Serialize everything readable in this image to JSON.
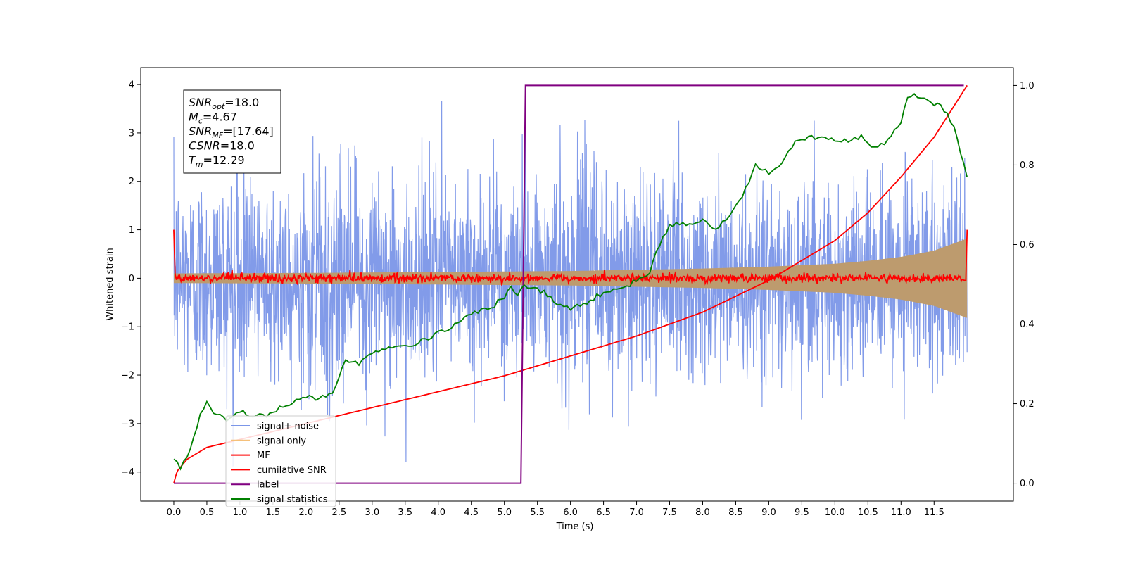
{
  "chart_data": {
    "type": "line",
    "xlabel": "Time (s)",
    "ylabel": "Whitened strain",
    "xlim": [
      -0.5,
      12.7
    ],
    "ylim": [
      -4.6,
      4.35
    ],
    "y2lim": [
      -0.045,
      1.045
    ],
    "xticks": [
      0.0,
      0.5,
      1.0,
      1.5,
      2.0,
      2.5,
      3.0,
      3.5,
      4.0,
      4.5,
      5.0,
      5.5,
      6.0,
      6.5,
      7.0,
      7.5,
      8.0,
      8.5,
      9.0,
      9.5,
      10.0,
      10.5,
      11.0,
      11.5
    ],
    "xtick_labels": [
      "0.0",
      "0.5",
      "1.0",
      "1.5",
      "2.0",
      "2.5",
      "3.0",
      "3.5",
      "4.0",
      "4.5",
      "5.0",
      "5.5",
      "6.0",
      "6.5",
      "7.0",
      "7.5",
      "8.0",
      "8.5",
      "9.0",
      "9.5",
      "10.0",
      "10.5",
      "11.0",
      "11.5"
    ],
    "yticks": [
      4,
      3,
      2,
      1,
      0,
      -1,
      -2,
      -3,
      -4
    ],
    "ytick_labels": [
      "4",
      "3",
      "2",
      "1",
      "0",
      "−1",
      "−2",
      "−3",
      "−4"
    ],
    "y2ticks": [
      1.0,
      0.8,
      0.6,
      0.4,
      0.2,
      0.0
    ],
    "y2tick_labels": [
      "1.0",
      "0.8",
      "0.6",
      "0.4",
      "0.2",
      "0.0"
    ],
    "grid": false,
    "legend_position": "lower-left",
    "annotations": [
      {
        "main": "SNR",
        "sub": "opt",
        "value": "=18.0"
      },
      {
        "main": "M",
        "sub": "c",
        "value": "=4.67"
      },
      {
        "main": "SNR",
        "sub": "MF",
        "value": "=[17.64]"
      },
      {
        "main": "CSNR",
        "sub": "",
        "value": "=18.0"
      },
      {
        "main": "T",
        "sub": "m",
        "value": "=12.29"
      }
    ],
    "series": [
      {
        "name": "signal+ noise",
        "color": "#7b96e8",
        "axis": "left",
        "note": "dense noise, range approx -4.1 to 3.9, mostly within ±2.5",
        "x_range": [
          0.0,
          12.0
        ],
        "y_range": [
          -4.15,
          3.95
        ]
      },
      {
        "name": "signal only",
        "color": "#f5c07a",
        "axis": "left",
        "envelope_x": [
          0.0,
          2.0,
          4.0,
          6.0,
          8.0,
          9.0,
          10.0,
          10.5,
          11.0,
          11.5,
          12.0
        ],
        "envelope_amp": [
          0.1,
          0.11,
          0.13,
          0.15,
          0.2,
          0.24,
          0.3,
          0.36,
          0.44,
          0.57,
          0.82
        ]
      },
      {
        "name": "MF",
        "color": "#ff0000",
        "axis": "left",
        "x": [
          0.0,
          0.02,
          0.05,
          0.1,
          11.9,
          11.95,
          12.0
        ],
        "y": [
          1.0,
          0.1,
          0.0,
          0.0,
          0.0,
          -0.05,
          1.0
        ],
        "note": "noisy around 0 with amplitude ~0.12"
      },
      {
        "name": "cumilative SNR",
        "color": "#ff0000",
        "axis": "right",
        "x": [
          0.0,
          0.05,
          0.2,
          0.5,
          1.0,
          2.0,
          3.0,
          4.0,
          5.0,
          6.0,
          7.0,
          8.0,
          9.0,
          10.0,
          10.5,
          11.0,
          11.5,
          12.0
        ],
        "y": [
          0.0,
          0.03,
          0.06,
          0.09,
          0.11,
          0.15,
          0.19,
          0.23,
          0.27,
          0.32,
          0.37,
          0.43,
          0.51,
          0.61,
          0.68,
          0.77,
          0.87,
          1.0
        ]
      },
      {
        "name": "label",
        "color": "#800080",
        "axis": "right",
        "x": [
          0.0,
          5.25,
          5.32,
          11.95
        ],
        "y": [
          0.0,
          0.0,
          1.0,
          1.0
        ]
      },
      {
        "name": "signal statistics",
        "color": "#008000",
        "axis": "right",
        "x": [
          0.0,
          0.1,
          0.2,
          0.3,
          0.4,
          0.5,
          0.6,
          0.7,
          0.8,
          0.9,
          1.0,
          1.2,
          1.4,
          1.6,
          1.8,
          2.0,
          2.2,
          2.4,
          2.5,
          2.6,
          2.8,
          3.0,
          3.2,
          3.4,
          3.6,
          3.8,
          4.0,
          4.2,
          4.4,
          4.6,
          4.8,
          5.0,
          5.1,
          5.2,
          5.3,
          5.4,
          5.6,
          5.8,
          6.0,
          6.2,
          6.4,
          6.6,
          6.8,
          7.0,
          7.2,
          7.3,
          7.5,
          7.7,
          8.0,
          8.2,
          8.4,
          8.6,
          8.8,
          9.0,
          9.2,
          9.4,
          9.6,
          9.8,
          10.0,
          10.2,
          10.4,
          10.6,
          10.8,
          11.0,
          11.1,
          11.2,
          11.4,
          11.6,
          11.8,
          12.0
        ],
        "y": [
          0.06,
          0.04,
          0.06,
          0.12,
          0.17,
          0.2,
          0.18,
          0.17,
          0.16,
          0.17,
          0.18,
          0.17,
          0.17,
          0.19,
          0.2,
          0.22,
          0.21,
          0.23,
          0.27,
          0.31,
          0.3,
          0.33,
          0.34,
          0.35,
          0.35,
          0.36,
          0.38,
          0.39,
          0.42,
          0.43,
          0.44,
          0.47,
          0.49,
          0.47,
          0.5,
          0.49,
          0.48,
          0.45,
          0.44,
          0.45,
          0.47,
          0.48,
          0.49,
          0.51,
          0.53,
          0.58,
          0.65,
          0.65,
          0.66,
          0.64,
          0.67,
          0.72,
          0.8,
          0.78,
          0.8,
          0.86,
          0.87,
          0.87,
          0.86,
          0.86,
          0.87,
          0.84,
          0.86,
          0.91,
          0.97,
          0.98,
          0.96,
          0.95,
          0.9,
          0.77
        ]
      }
    ]
  }
}
